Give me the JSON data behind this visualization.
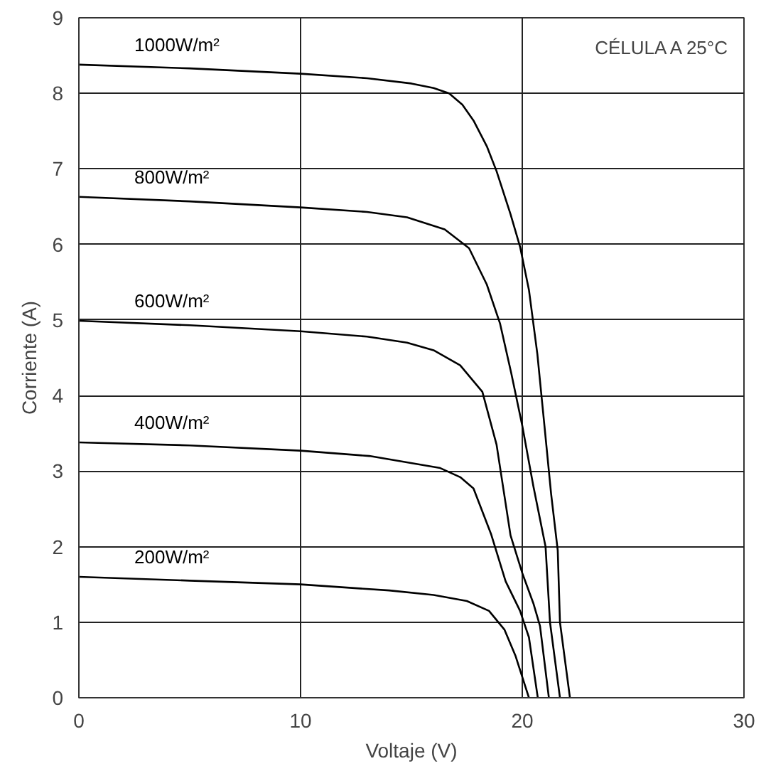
{
  "chart_data": {
    "type": "line",
    "xlabel": "Voltaje (V)",
    "ylabel": "Corriente (A)",
    "xlim": [
      0,
      30
    ],
    "ylim": [
      0,
      9
    ],
    "xticks": [
      0,
      10,
      20,
      30
    ],
    "yticks": [
      0,
      1,
      2,
      3,
      4,
      5,
      6,
      7,
      8,
      9
    ],
    "grid": true,
    "marker": "none",
    "line_style": "solid",
    "annotations": [
      "CÉLULA A 25°C"
    ],
    "series": [
      {
        "name": "1000W/m²",
        "color": "#000000",
        "x": [
          0,
          5,
          10,
          13,
          15,
          16,
          16.7,
          17.3,
          17.8,
          18.4,
          18.84,
          19.47,
          19.9,
          20.3,
          20.68,
          21.0,
          21.3,
          21.6,
          21.7,
          22.15
        ],
        "values": [
          8.38,
          8.33,
          8.26,
          8.2,
          8.13,
          8.07,
          8.0,
          7.85,
          7.64,
          7.3,
          6.97,
          6.4,
          5.97,
          5.4,
          4.55,
          3.6,
          2.7,
          1.95,
          1.0,
          0
        ]
      },
      {
        "name": "800W/m²",
        "color": "#000000",
        "x": [
          0,
          5,
          10,
          13,
          14.8,
          16.5,
          17.6,
          18.4,
          19.0,
          19.5,
          20.0,
          20.5,
          21.05,
          21.25,
          21.7
        ],
        "values": [
          6.63,
          6.57,
          6.49,
          6.43,
          6.36,
          6.2,
          5.95,
          5.47,
          4.95,
          4.3,
          3.6,
          2.8,
          2.0,
          1.0,
          0
        ]
      },
      {
        "name": "600W/m²",
        "color": "#000000",
        "x": [
          0,
          5,
          10,
          13,
          14.8,
          16,
          17.2,
          18.2,
          18.84,
          19.47,
          20.0,
          20.5,
          20.8,
          21.2
        ],
        "values": [
          4.99,
          4.93,
          4.85,
          4.78,
          4.7,
          4.6,
          4.4,
          4.05,
          3.35,
          2.15,
          1.65,
          1.25,
          0.95,
          0
        ]
      },
      {
        "name": "400W/m²",
        "color": "#000000",
        "x": [
          0,
          5,
          10,
          13.1,
          16.3,
          17.2,
          17.8,
          18.6,
          19.25,
          19.9,
          20.3,
          20.7
        ],
        "values": [
          3.38,
          3.34,
          3.27,
          3.2,
          3.04,
          2.92,
          2.77,
          2.16,
          1.54,
          1.15,
          0.8,
          0
        ]
      },
      {
        "name": "200W/m²",
        "color": "#000000",
        "x": [
          0,
          5,
          10,
          14,
          16,
          17.5,
          18.5,
          19.2,
          19.7,
          20.3
        ],
        "values": [
          1.6,
          1.55,
          1.5,
          1.42,
          1.36,
          1.28,
          1.15,
          0.9,
          0.55,
          0
        ]
      }
    ]
  }
}
